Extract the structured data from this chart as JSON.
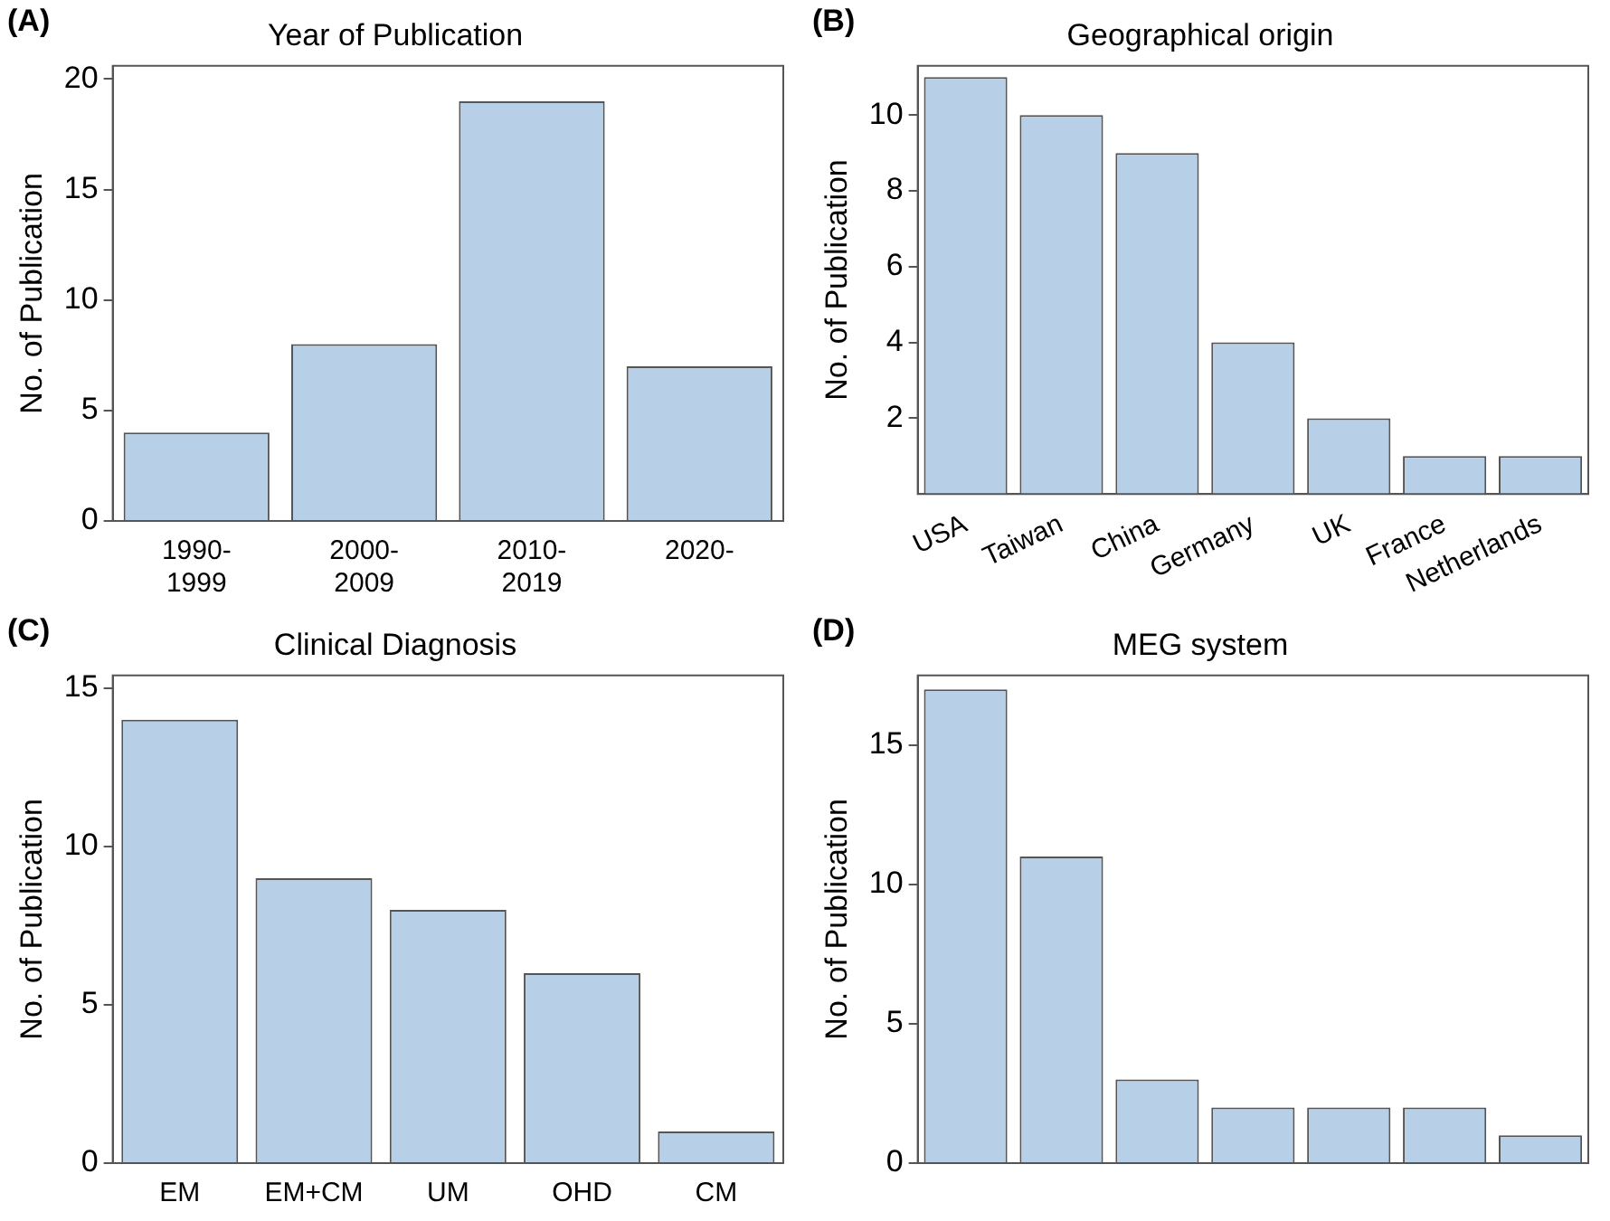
{
  "chart_data": [
    {
      "type": "bar",
      "title": "Year of Publication",
      "ylabel": "No. of Publication",
      "annotations": [
        "(A)"
      ],
      "categories": [
        "1990-1999",
        "2000-2009",
        "2010-2019",
        "2020-"
      ],
      "values": [
        4,
        8,
        19,
        7
      ],
      "color": "#b8cfe8",
      "ylim": [
        0,
        20.6
      ],
      "yticks": [
        0,
        5,
        10,
        15,
        20
      ]
    },
    {
      "type": "bar",
      "title": "Geographical origin",
      "ylabel": "No. of Publication",
      "annotations": [
        "(B)"
      ],
      "categories": [
        "USA",
        "Taiwan",
        "China",
        "Germany",
        "UK",
        "France",
        "Netherlands"
      ],
      "values": [
        11,
        10,
        9,
        4,
        2,
        1,
        1
      ],
      "color": "#b8cfe8",
      "ylim": [
        0,
        11.3
      ],
      "yticks": [
        2,
        4,
        6,
        8,
        10
      ]
    },
    {
      "type": "bar",
      "title": "Clinical Diagnosis",
      "ylabel": "No. of Publication",
      "annotations": [
        "(C)"
      ],
      "categories": [
        "EM",
        "EM+CM",
        "UM",
        "OHD",
        "CM"
      ],
      "values": [
        14,
        9,
        8,
        6,
        1
      ],
      "color": "#b8cfe8",
      "ylim": [
        0,
        15.4
      ],
      "yticks": [
        0,
        5,
        10,
        15
      ]
    },
    {
      "type": "bar",
      "title": "MEG system",
      "ylabel": "No. of Publication",
      "annotations": [
        "(D)"
      ],
      "categories": [
        null,
        null,
        null,
        null,
        null,
        null,
        null
      ],
      "values": [
        17,
        11,
        3,
        2,
        2,
        2,
        1
      ],
      "color": "#b8cfe8",
      "ylim": [
        0,
        17.5
      ],
      "yticks": [
        0,
        5,
        10,
        15
      ]
    }
  ]
}
